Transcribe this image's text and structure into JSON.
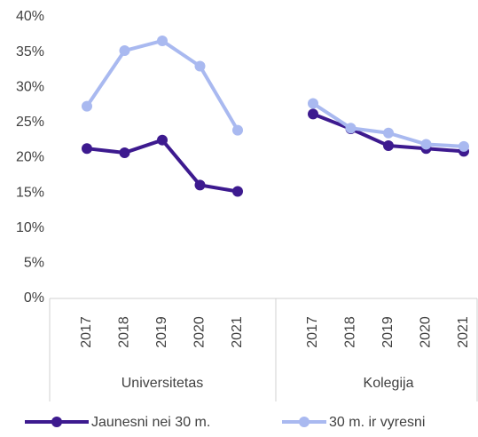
{
  "chart_data": {
    "type": "line",
    "categories": [
      "2017",
      "2018",
      "2019",
      "2020",
      "2021",
      null,
      "2017",
      "2018",
      "2019",
      "2020",
      "2021"
    ],
    "group_labels": [
      "Universitetas",
      "Kolegija"
    ],
    "series": [
      {
        "name": "Jaunesni nei 30 m.",
        "color": "#3d1a8f",
        "values": [
          21.3,
          20.7,
          22.5,
          16.1,
          15.2,
          null,
          26.2,
          24.1,
          21.7,
          21.3,
          20.9
        ]
      },
      {
        "name": "30 m. ir vyresni",
        "color": "#a9b9f0",
        "values": [
          27.3,
          35.2,
          36.6,
          33.0,
          23.9,
          null,
          27.7,
          24.2,
          23.5,
          21.9,
          21.6
        ]
      }
    ],
    "ylim": [
      0,
      40
    ],
    "yticks": [
      {
        "value": 0,
        "label": "0%"
      },
      {
        "value": 5,
        "label": "5%"
      },
      {
        "value": 10,
        "label": "10%"
      },
      {
        "value": 15,
        "label": "15%"
      },
      {
        "value": 20,
        "label": "20%"
      },
      {
        "value": 25,
        "label": "25%"
      },
      {
        "value": 30,
        "label": "30%"
      },
      {
        "value": 35,
        "label": "35%"
      },
      {
        "value": 40,
        "label": "40%"
      }
    ],
    "grid": false,
    "legend": "bottom"
  }
}
